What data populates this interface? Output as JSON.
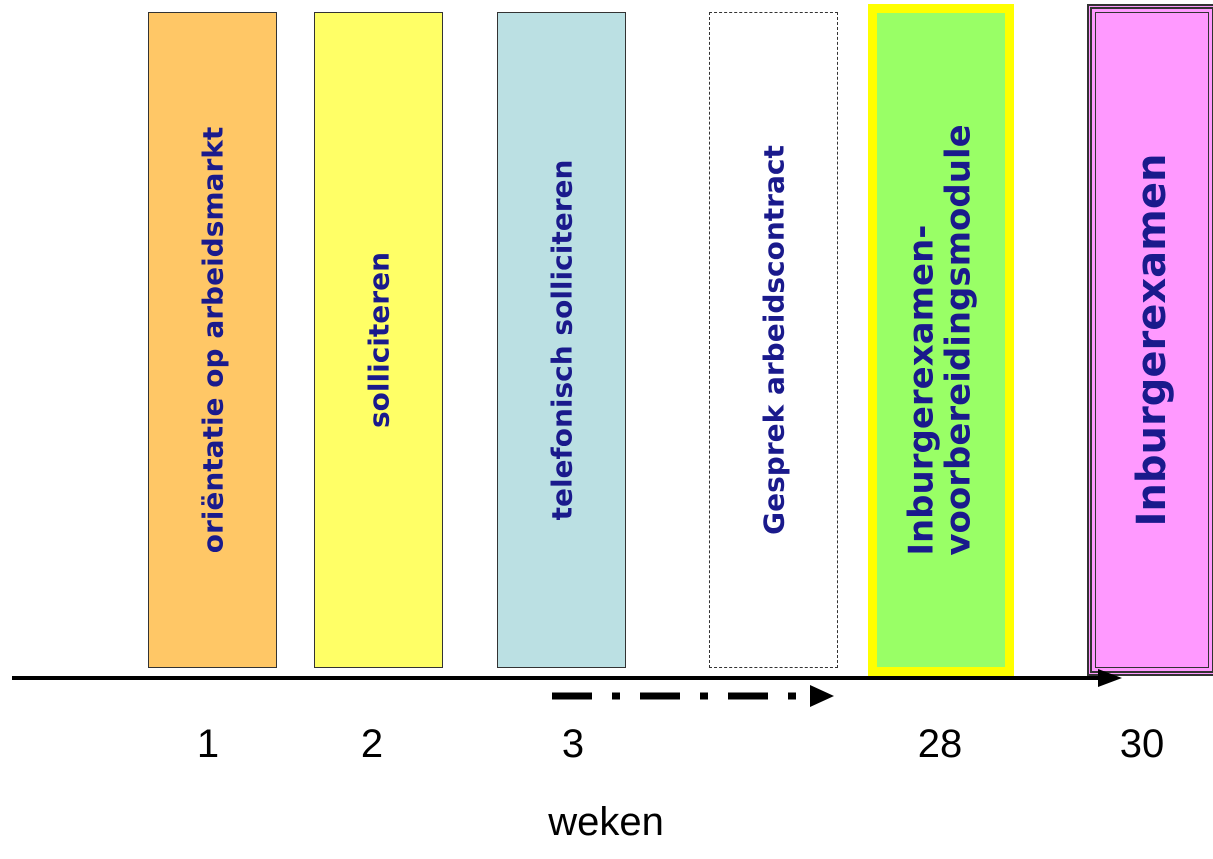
{
  "stages": [
    {
      "label": "oriëntatie op arbeidsmarkt",
      "fill": "#ffc766"
    },
    {
      "label": "solliciteren",
      "fill": "#ffff66"
    },
    {
      "label": "telefonisch solliciteren",
      "fill": "#bbe0e3"
    },
    {
      "label": "Gesprek arbeidscontract",
      "fill": "#ffffff"
    },
    {
      "label_line1": "Inburgerexamen-",
      "label_line2": "voorbereidingsmodule",
      "fill": "#99ff66",
      "border": "#ffff00"
    },
    {
      "label": "Inburgerexamen",
      "fill": "#ff99ff"
    }
  ],
  "ticks": [
    "1",
    "2",
    "3",
    "28",
    "30"
  ],
  "axis_title": "weken",
  "colors": {
    "label_text": "#1a1a8c",
    "axis": "#000000"
  }
}
